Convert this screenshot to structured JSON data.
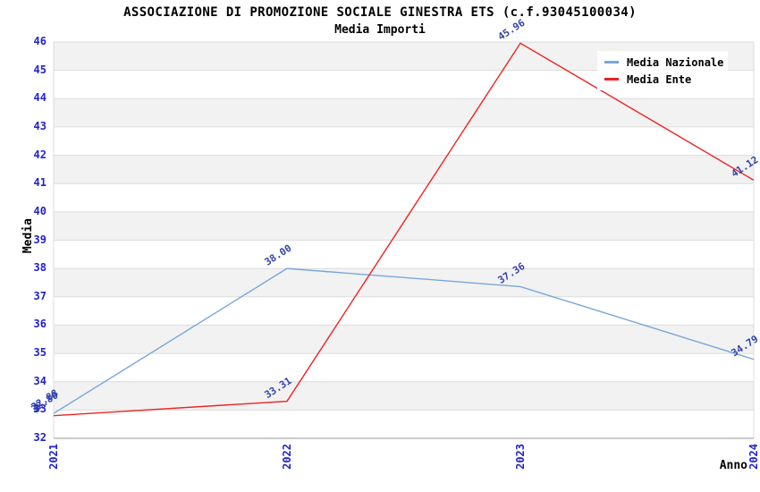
{
  "chart_data": {
    "type": "line",
    "title": "ASSOCIAZIONE DI PROMOZIONE SOCIALE GINESTRA ETS (c.f.93045100034)",
    "subtitle": "Media Importi",
    "xlabel": "Anno",
    "ylabel": "Media",
    "categories": [
      "2021",
      "2022",
      "2023",
      "2024"
    ],
    "series": [
      {
        "name": "Media Nazionale",
        "color": "#77a8d9",
        "values": [
          32.88,
          38.0,
          37.36,
          34.79
        ]
      },
      {
        "name": "Media Ente",
        "color": "#ee2222",
        "values": [
          32.8,
          33.31,
          45.96,
          41.12
        ]
      }
    ],
    "ylim": [
      32,
      46
    ],
    "ytick_step": 1,
    "grid": true,
    "legend_position": "top-right",
    "band_colors": [
      "#f2f2f2",
      "#ffffff"
    ],
    "grid_color": "#dcdcdc",
    "axis_color": "#999999",
    "tick_color": "#2222cc",
    "point_label_color": "#3344aa"
  }
}
